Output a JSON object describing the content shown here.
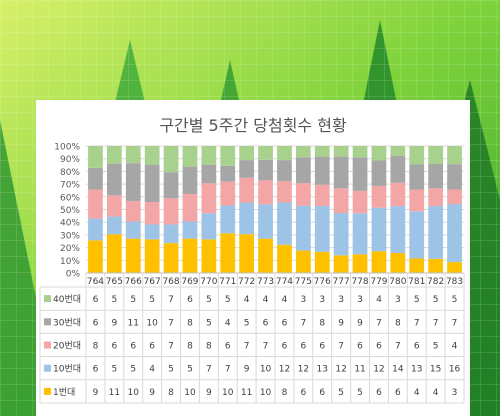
{
  "chart_data": {
    "type": "bar",
    "stacked": "100%",
    "title": "구간별 5주간 당첨횟수 현황",
    "categories": [
      "764",
      "765",
      "766",
      "767",
      "768",
      "769",
      "770",
      "771",
      "772",
      "773",
      "774",
      "775",
      "776",
      "777",
      "778",
      "779",
      "780",
      "781",
      "782",
      "783"
    ],
    "y_ticks": [
      "0%",
      "10%",
      "20%",
      "30%",
      "40%",
      "50%",
      "60%",
      "70%",
      "80%",
      "90%",
      "100%"
    ],
    "ylim": [
      0,
      100
    ],
    "grid": true,
    "legend": "data-table",
    "series": [
      {
        "name": "1번대",
        "color": "#ffc000",
        "values": [
          9,
          11,
          10,
          9,
          8,
          10,
          9,
          10,
          11,
          10,
          8,
          6,
          6,
          5,
          5,
          6,
          6,
          4,
          4,
          3
        ]
      },
      {
        "name": "10번대",
        "color": "#9dc3e6",
        "values": [
          6,
          5,
          5,
          4,
          5,
          5,
          7,
          7,
          9,
          10,
          12,
          12,
          13,
          12,
          11,
          12,
          14,
          13,
          15,
          16
        ]
      },
      {
        "name": "20번대",
        "color": "#f4a6a6",
        "values": [
          8,
          6,
          6,
          6,
          7,
          8,
          8,
          6,
          7,
          7,
          6,
          6,
          6,
          7,
          6,
          6,
          7,
          6,
          5,
          4
        ]
      },
      {
        "name": "30번대",
        "color": "#a6a6a6",
        "values": [
          6,
          9,
          11,
          10,
          7,
          8,
          5,
          4,
          5,
          6,
          6,
          7,
          8,
          9,
          9,
          7,
          8,
          7,
          7,
          7
        ]
      },
      {
        "name": "40번대",
        "color": "#a9d18e",
        "values": [
          6,
          5,
          5,
          5,
          7,
          6,
          5,
          5,
          4,
          4,
          4,
          3,
          3,
          3,
          3,
          4,
          3,
          5,
          5,
          5
        ]
      }
    ]
  }
}
